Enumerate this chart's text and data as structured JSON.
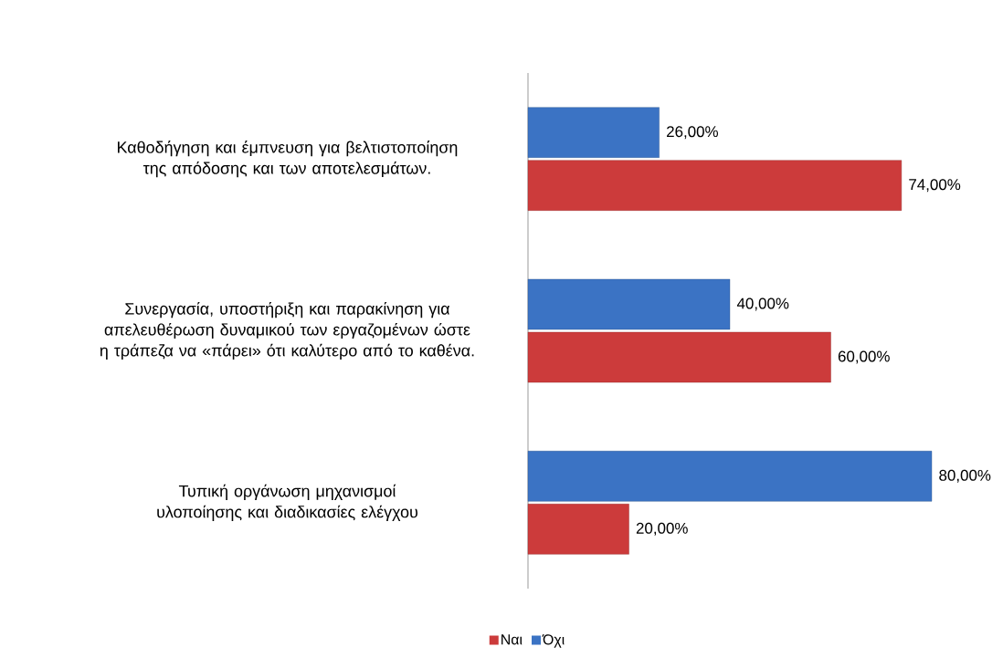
{
  "chart_data": {
    "type": "bar",
    "orientation": "horizontal",
    "categories": [
      "Καθοδήγηση και έμπνευση για βελτιστοποίηση της απόδοσης  και των αποτελεσμάτων.",
      "Συνεργασία, υποστήριξη και παρακίνηση για απελευθέρωση δυναμικού των εργαζομένων ώστε η τράπεζα να «πάρει» ότι καλύτερο από το καθένα.",
      "Τυπική οργάνωση μηχανισμοί υλοποίησης και διαδικασίες ελέγχου"
    ],
    "series": [
      {
        "name": "Ναι",
        "color": "#cc3b3b",
        "values": [
          74,
          60,
          20
        ],
        "value_labels": [
          "74,00%",
          "60,00%",
          "20,00%"
        ]
      },
      {
        "name": "Όχι",
        "color": "#3b73c4",
        "values": [
          26,
          40,
          80
        ],
        "value_labels": [
          "26,00%",
          "40,00%",
          "80,00%"
        ]
      }
    ],
    "legend": "bottom"
  }
}
